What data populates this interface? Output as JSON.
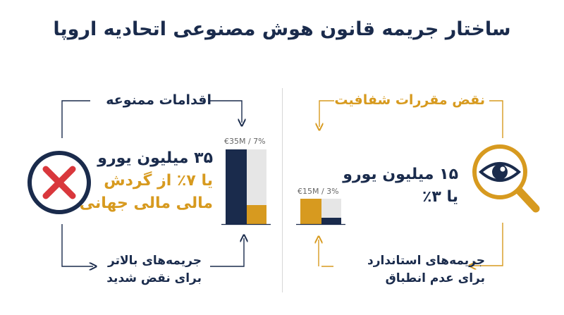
{
  "title": "ساختار جریمه قانون هوش مصنوعی اتحادیه اروپا",
  "left": {
    "header": "اقدامات ممنوعه",
    "amount_line1": "۳۵ میلیون یورو",
    "amount_line2": "یا ۷٪ از گردش",
    "amount_line3": "مالی مالی جهانی",
    "footer_line1": "جریمه‌های بالاتر",
    "footer_line2": "برای نقض شدید",
    "bar_label": "€35M / 7%",
    "icon": "red-x-icon",
    "bar_level": 0.25
  },
  "right": {
    "header": "نقض مقررات شفافیت",
    "amount_line1": "۱۵ میلیون یورو",
    "amount_line2": "یا ۳٪",
    "footer_line1": "جریمه‌های استاندارد",
    "footer_line2": "برای عدم انطباق",
    "bar_label": "€15M / 3%",
    "icon": "eye-magnifier-icon",
    "bar_level": 0.25
  },
  "colors": {
    "navy": "#1a2b4c",
    "gold": "#d79a1f",
    "red": "#d9373c",
    "grey": "#e6e6e6"
  }
}
